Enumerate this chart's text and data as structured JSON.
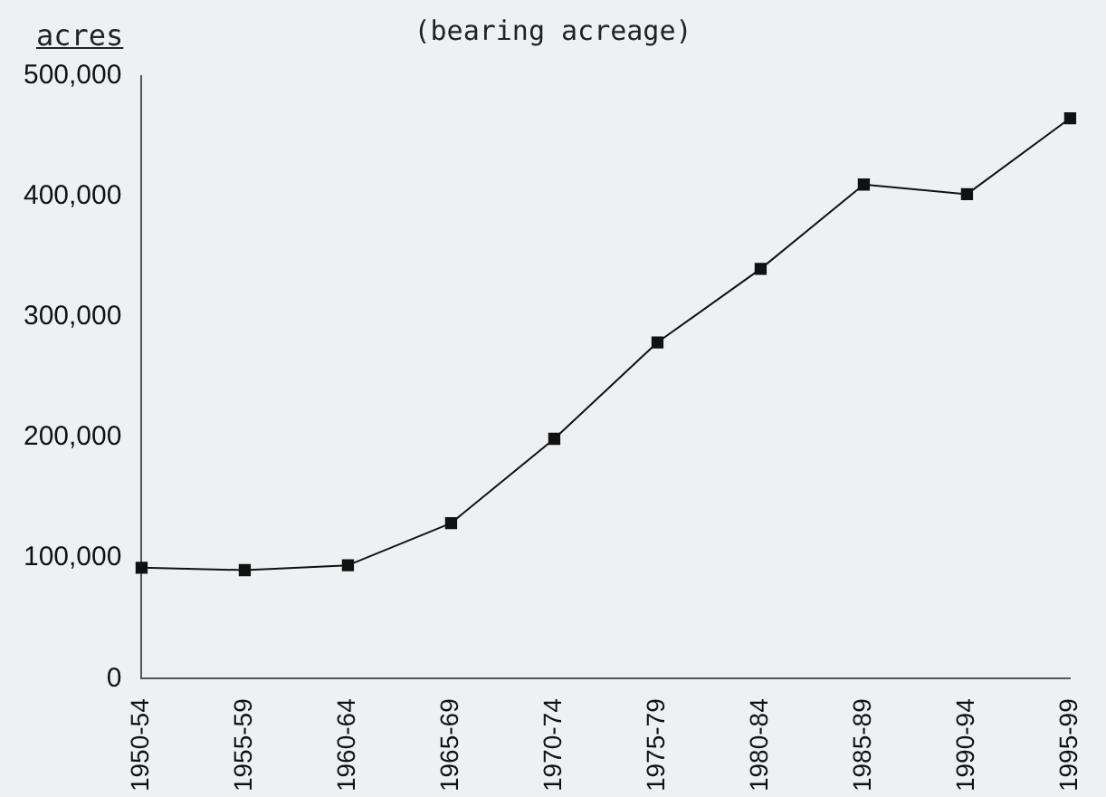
{
  "chart_data": {
    "type": "line",
    "subtitle": "(bearing acreage)",
    "ylabel": "acres",
    "categories": [
      "1950-54",
      "1955-59",
      "1960-64",
      "1965-69",
      "1970-74",
      "1975-79",
      "1980-84",
      "1985-89",
      "1990-94",
      "1995-99"
    ],
    "series": [
      {
        "color": "#111111",
        "values": [
          92000,
          90000,
          94000,
          129000,
          199000,
          279000,
          340000,
          410000,
          402000,
          465000
        ]
      }
    ],
    "ylim": [
      0,
      500000
    ],
    "yticks": [
      {
        "value": 0,
        "label": "0"
      },
      {
        "value": 100000,
        "label": "100,000"
      },
      {
        "value": 200000,
        "label": "200,000"
      },
      {
        "value": 300000,
        "label": "300,000"
      },
      {
        "value": 400000,
        "label": "400,000"
      },
      {
        "value": 500000,
        "label": "500,000"
      }
    ],
    "grid": false,
    "legend": false,
    "marker": "square",
    "line_style": "solid"
  }
}
